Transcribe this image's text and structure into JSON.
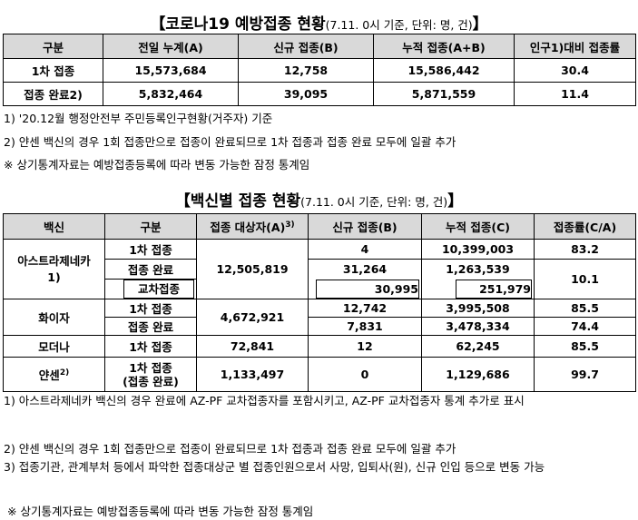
{
  "section1": {
    "title": "【코로나19 예방접종 현황",
    "title_sub": "(7.11. 0시 기준, 단위: 명, 건)",
    "title_end": "】",
    "headers": [
      "구분",
      "전일 누계(A)",
      "신규 접종(B)",
      "누적 접종(A+B)",
      "인구1)대비 접종률"
    ],
    "rows": [
      [
        "1차 접종",
        "15,573,684",
        "12,758",
        "15,586,442",
        "30.4"
      ],
      [
        "접종 완료2)",
        "5,832,464",
        "39,095",
        "5,871,559",
        "11.4"
      ]
    ],
    "notes": [
      "1) '20.12월 행정안전부 주민등록인구현황(거주자) 기준",
      "2) 얀센 백신의 경우 1회 접종만으로 접종이 완료되므로 1차 접종과 접종 완료 모두에 일괄 추가",
      "※ 상기통계자료는 예방접종등록에 따라 변동 가능한 잠정 통계임"
    ]
  },
  "section2": {
    "title": "【백신별 접종 현황",
    "title_sub": "(7.11. 0시 기준, 단위: 명, 건)",
    "title_end": "】",
    "headers": [
      "백신",
      "구분",
      "접종 대상자(A)",
      "3)",
      "신규 접종(B)",
      "누적 접종(C)",
      "접종률(C/A)"
    ],
    "az": {
      "name": "아스트라제네카",
      "sup": "1)",
      "target": "12,505,819",
      "r1": [
        "1차 접종",
        "4",
        "10,399,003",
        "83.2"
      ],
      "r2": [
        "접종 완료",
        "31,264",
        "1,263,539",
        "10.1"
      ],
      "r3": [
        "교차접종",
        "30,995",
        "251,979"
      ]
    },
    "pfizer": {
      "name": "화이자",
      "target": "4,672,921",
      "r1": [
        "1차 접종",
        "12,742",
        "3,995,508",
        "85.5"
      ],
      "r2": [
        "접종 완료",
        "7,831",
        "3,478,334",
        "74.4"
      ]
    },
    "moderna": [
      "모더나",
      "1차 접종",
      "72,841",
      "12",
      "62,245",
      "85.5"
    ],
    "janssen": {
      "name": "얀센",
      "sup": "2)",
      "cat1": "1차 접종",
      "cat2": "(접종 완료)",
      "target": "1,133,497",
      "new": "0",
      "cum": "1,129,686",
      "rate": "99.7"
    },
    "notes": [
      "1) 아스트라제네카 백신의 경우 완료에 AZ-PF 교차접종자를 포함시키고, AZ-PF 교차접종자 통계 추가로 표시",
      "2) 얀센 백신의 경우 1회 접종만으로 접종이 완료되므로 1차 접종과 접종 완료 모두에 일괄 추가",
      "3) 접종기관, 관계부처 등에서 파악한 접종대상군 별 접종인원으로서 사망, 입퇴사(원), 신규 인입 등으로 변동 가능",
      "※ 상기통계자료는 예방접종등록에 따라 변동 가능한 잠정 통계임"
    ]
  }
}
